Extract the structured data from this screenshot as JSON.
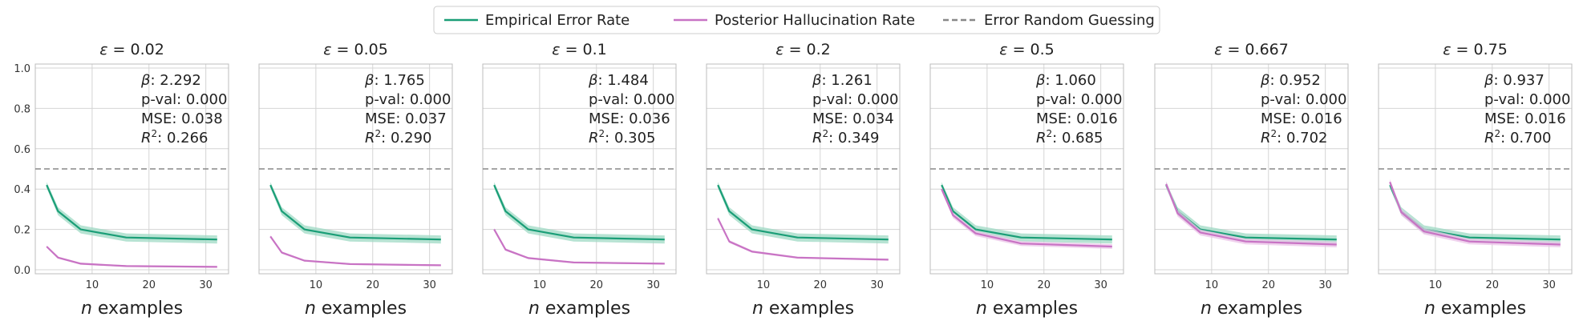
{
  "legend": {
    "placement": "top-center",
    "entries": [
      {
        "label": "Empirical Error Rate",
        "color": "#1a9e77",
        "style": "solid"
      },
      {
        "label": "Posterior Hallucination Rate",
        "color": "#c873c4",
        "style": "solid"
      },
      {
        "label": "Error Random Guessing",
        "color": "#888888",
        "style": "dashed"
      }
    ]
  },
  "colors": {
    "empirical": "#1a9e77",
    "empirical_band": "#9fd9c4",
    "posterior": "#c873c4",
    "posterior_band": "#ebc3e8",
    "guess": "#888888",
    "grid": "#d4d4d4",
    "frame": "#bdbdbd"
  },
  "chart_data": [
    {
      "type": "line",
      "title": "ε = 0.02",
      "eps_value": "0.02",
      "xlabel": "n examples",
      "x": [
        2,
        4,
        8,
        16,
        32
      ],
      "xticks": [
        10,
        20,
        30
      ],
      "yticks": [
        0.0,
        0.2,
        0.4,
        0.6,
        0.8,
        1.0
      ],
      "xlim": [
        0,
        34
      ],
      "ylim": [
        -0.02,
        1.02
      ],
      "grid": true,
      "show_yticks": true,
      "series": [
        {
          "name": "Empirical Error Rate",
          "values": [
            0.42,
            0.29,
            0.2,
            0.16,
            0.15
          ],
          "band": [
            0.015,
            0.02,
            0.02,
            0.02,
            0.02
          ]
        },
        {
          "name": "Posterior Hallucination Rate",
          "values": [
            0.115,
            0.06,
            0.03,
            0.018,
            0.014
          ],
          "band": [
            0.005,
            0.005,
            0.005,
            0.004,
            0.004
          ]
        }
      ],
      "hline": {
        "name": "Error Random Guessing",
        "y": 0.5
      },
      "stats": {
        "beta_label": "β",
        "beta": ": 2.292",
        "pval": "p-val: 0.000",
        "mse": "MSE: 0.038",
        "r2_label": "R",
        "r2": ": 0.266"
      }
    },
    {
      "type": "line",
      "title": "ε = 0.05",
      "eps_value": "0.05",
      "xlabel": "n examples",
      "x": [
        2,
        4,
        8,
        16,
        32
      ],
      "xticks": [
        10,
        20,
        30
      ],
      "yticks": [
        0.0,
        0.2,
        0.4,
        0.6,
        0.8,
        1.0
      ],
      "xlim": [
        0,
        34
      ],
      "ylim": [
        -0.02,
        1.02
      ],
      "grid": true,
      "show_yticks": false,
      "series": [
        {
          "name": "Empirical Error Rate",
          "values": [
            0.42,
            0.29,
            0.2,
            0.16,
            0.15
          ],
          "band": [
            0.015,
            0.02,
            0.02,
            0.02,
            0.02
          ]
        },
        {
          "name": "Posterior Hallucination Rate",
          "values": [
            0.165,
            0.085,
            0.045,
            0.028,
            0.022
          ],
          "band": [
            0.006,
            0.006,
            0.005,
            0.004,
            0.004
          ]
        }
      ],
      "hline": {
        "name": "Error Random Guessing",
        "y": 0.5
      },
      "stats": {
        "beta_label": "β",
        "beta": ": 1.765",
        "pval": "p-val: 0.000",
        "mse": "MSE: 0.037",
        "r2_label": "R",
        "r2": ": 0.290"
      }
    },
    {
      "type": "line",
      "title": "ε = 0.1",
      "eps_value": "0.1",
      "xlabel": "n examples",
      "x": [
        2,
        4,
        8,
        16,
        32
      ],
      "xticks": [
        10,
        20,
        30
      ],
      "yticks": [
        0.0,
        0.2,
        0.4,
        0.6,
        0.8,
        1.0
      ],
      "xlim": [
        0,
        34
      ],
      "ylim": [
        -0.02,
        1.02
      ],
      "grid": true,
      "show_yticks": false,
      "series": [
        {
          "name": "Empirical Error Rate",
          "values": [
            0.42,
            0.29,
            0.2,
            0.16,
            0.15
          ],
          "band": [
            0.015,
            0.02,
            0.02,
            0.02,
            0.02
          ]
        },
        {
          "name": "Posterior Hallucination Rate",
          "values": [
            0.2,
            0.1,
            0.058,
            0.036,
            0.03
          ],
          "band": [
            0.007,
            0.006,
            0.005,
            0.004,
            0.004
          ]
        }
      ],
      "hline": {
        "name": "Error Random Guessing",
        "y": 0.5
      },
      "stats": {
        "beta_label": "β",
        "beta": ": 1.484",
        "pval": "p-val: 0.000",
        "mse": "MSE: 0.036",
        "r2_label": "R",
        "r2": ": 0.305"
      }
    },
    {
      "type": "line",
      "title": "ε = 0.2",
      "eps_value": "0.2",
      "xlabel": "n examples",
      "x": [
        2,
        4,
        8,
        16,
        32
      ],
      "xticks": [
        10,
        20,
        30
      ],
      "yticks": [
        0.0,
        0.2,
        0.4,
        0.6,
        0.8,
        1.0
      ],
      "xlim": [
        0,
        34
      ],
      "ylim": [
        -0.02,
        1.02
      ],
      "grid": true,
      "show_yticks": false,
      "series": [
        {
          "name": "Empirical Error Rate",
          "values": [
            0.42,
            0.29,
            0.2,
            0.16,
            0.15
          ],
          "band": [
            0.015,
            0.02,
            0.02,
            0.02,
            0.02
          ]
        },
        {
          "name": "Posterior Hallucination Rate",
          "values": [
            0.255,
            0.14,
            0.09,
            0.06,
            0.05
          ],
          "band": [
            0.008,
            0.007,
            0.006,
            0.005,
            0.005
          ]
        }
      ],
      "hline": {
        "name": "Error Random Guessing",
        "y": 0.5
      },
      "stats": {
        "beta_label": "β",
        "beta": ": 1.261",
        "pval": "p-val: 0.000",
        "mse": "MSE: 0.034",
        "r2_label": "R",
        "r2": ": 0.349"
      }
    },
    {
      "type": "line",
      "title": "ε = 0.5",
      "eps_value": "0.5",
      "xlabel": "n examples",
      "x": [
        2,
        4,
        8,
        16,
        32
      ],
      "xticks": [
        10,
        20,
        30
      ],
      "yticks": [
        0.0,
        0.2,
        0.4,
        0.6,
        0.8,
        1.0
      ],
      "xlim": [
        0,
        34
      ],
      "ylim": [
        -0.02,
        1.02
      ],
      "grid": true,
      "show_yticks": false,
      "series": [
        {
          "name": "Empirical Error Rate",
          "values": [
            0.42,
            0.29,
            0.2,
            0.16,
            0.15
          ],
          "band": [
            0.015,
            0.02,
            0.02,
            0.02,
            0.02
          ]
        },
        {
          "name": "Posterior Hallucination Rate",
          "values": [
            0.4,
            0.27,
            0.18,
            0.13,
            0.115
          ],
          "band": [
            0.012,
            0.014,
            0.013,
            0.012,
            0.012
          ]
        }
      ],
      "hline": {
        "name": "Error Random Guessing",
        "y": 0.5
      },
      "stats": {
        "beta_label": "β",
        "beta": ": 1.060",
        "pval": "p-val: 0.000",
        "mse": "MSE: 0.016",
        "r2_label": "R",
        "r2": ": 0.685"
      }
    },
    {
      "type": "line",
      "title": "ε = 0.667",
      "eps_value": "0.667",
      "xlabel": "n examples",
      "x": [
        2,
        4,
        8,
        16,
        32
      ],
      "xticks": [
        10,
        20,
        30
      ],
      "yticks": [
        0.0,
        0.2,
        0.4,
        0.6,
        0.8,
        1.0
      ],
      "xlim": [
        0,
        34
      ],
      "ylim": [
        -0.02,
        1.02
      ],
      "grid": true,
      "show_yticks": false,
      "series": [
        {
          "name": "Empirical Error Rate",
          "values": [
            0.42,
            0.29,
            0.2,
            0.16,
            0.15
          ],
          "band": [
            0.015,
            0.02,
            0.02,
            0.02,
            0.02
          ]
        },
        {
          "name": "Posterior Hallucination Rate",
          "values": [
            0.425,
            0.28,
            0.185,
            0.14,
            0.125
          ],
          "band": [
            0.014,
            0.016,
            0.015,
            0.014,
            0.014
          ]
        }
      ],
      "hline": {
        "name": "Error Random Guessing",
        "y": 0.5
      },
      "stats": {
        "beta_label": "β",
        "beta": ": 0.952",
        "pval": "p-val: 0.000",
        "mse": "MSE: 0.016",
        "r2_label": "R",
        "r2": ": 0.702"
      }
    },
    {
      "type": "line",
      "title": "ε = 0.75",
      "eps_value": "0.75",
      "xlabel": "n examples",
      "x": [
        2,
        4,
        8,
        16,
        32
      ],
      "xticks": [
        10,
        20,
        30
      ],
      "yticks": [
        0.0,
        0.2,
        0.4,
        0.6,
        0.8,
        1.0
      ],
      "xlim": [
        0,
        34
      ],
      "ylim": [
        -0.02,
        1.02
      ],
      "grid": true,
      "show_yticks": false,
      "series": [
        {
          "name": "Empirical Error Rate",
          "values": [
            0.42,
            0.29,
            0.2,
            0.16,
            0.15
          ],
          "band": [
            0.015,
            0.02,
            0.02,
            0.02,
            0.02
          ]
        },
        {
          "name": "Posterior Hallucination Rate",
          "values": [
            0.435,
            0.285,
            0.19,
            0.14,
            0.125
          ],
          "band": [
            0.014,
            0.016,
            0.015,
            0.014,
            0.014
          ]
        }
      ],
      "hline": {
        "name": "Error Random Guessing",
        "y": 0.5
      },
      "stats": {
        "beta_label": "β",
        "beta": ": 0.937",
        "pval": "p-val: 0.000",
        "mse": "MSE: 0.016",
        "r2_label": "R",
        "r2": ": 0.700"
      }
    }
  ]
}
